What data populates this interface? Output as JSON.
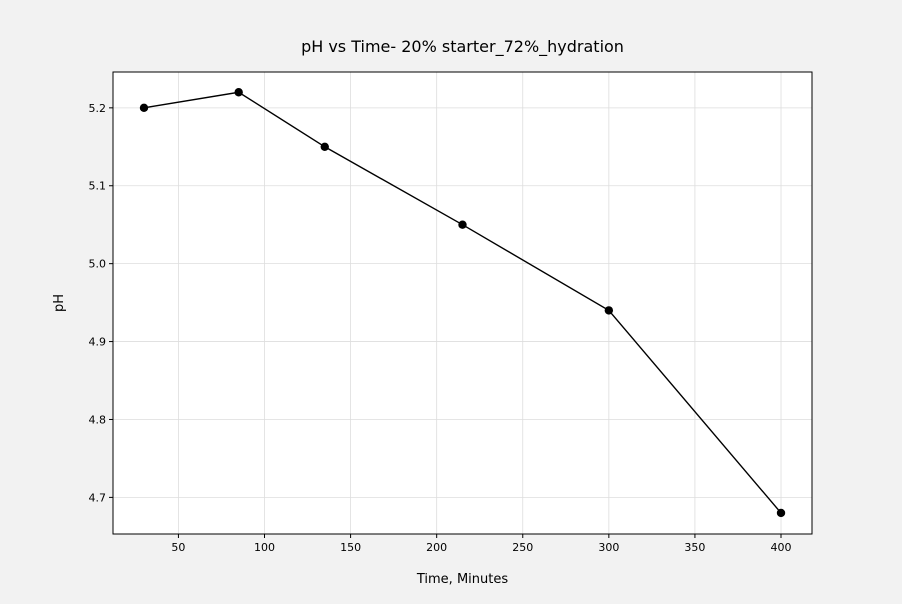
{
  "chart_data": {
    "type": "line",
    "title": "pH vs Time- 20% starter_72%_hydration",
    "xlabel": "Time, Minutes",
    "ylabel": "pH",
    "x": [
      30,
      85,
      135,
      215,
      300,
      400
    ],
    "series": [
      {
        "values": [
          5.2,
          5.22,
          5.15,
          5.05,
          4.94,
          4.68
        ]
      }
    ],
    "xlim": [
      12,
      418
    ],
    "ylim": [
      4.653,
      5.246
    ],
    "xticks": [
      50,
      100,
      150,
      200,
      250,
      300,
      350,
      400
    ],
    "yticks": [
      4.7,
      4.8,
      4.9,
      5.0,
      5.1,
      5.2
    ],
    "xtick_labels": [
      "50",
      "100",
      "150",
      "200",
      "250",
      "300",
      "350",
      "400"
    ],
    "ytick_labels": [
      "4.7",
      "4.8",
      "4.9",
      "5.0",
      "5.1",
      "5.2"
    ],
    "grid": true,
    "line_color": "#000000",
    "marker": "circle",
    "marker_color": "#000000",
    "grid_color": "#dddddd"
  }
}
